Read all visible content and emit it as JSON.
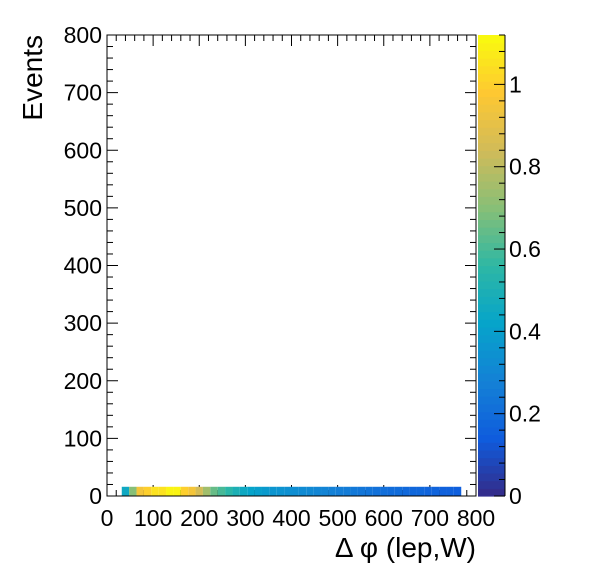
{
  "chart_data": {
    "type": "heatmap",
    "title": "",
    "xlabel": "Δ φ (lep,W)",
    "ylabel": "Events",
    "xlim": [
      0,
      800
    ],
    "ylim": [
      0,
      800
    ],
    "x_ticks": [
      "0",
      "100",
      "200",
      "300",
      "400",
      "500",
      "600",
      "700",
      "800"
    ],
    "y_ticks": [
      "0",
      "100",
      "200",
      "300",
      "400",
      "500",
      "600",
      "700",
      "800"
    ],
    "bin_width_x": 16,
    "bin_height_y": 16,
    "row_y_low": 0,
    "first_bin_x_low": 32,
    "values": [
      0.45,
      0.7,
      0.95,
      1.0,
      1.05,
      1.05,
      1.1,
      1.1,
      1.0,
      0.95,
      0.85,
      0.75,
      0.65,
      0.6,
      0.55,
      0.5,
      0.45,
      0.42,
      0.4,
      0.38,
      0.36,
      0.35,
      0.34,
      0.33,
      0.32,
      0.31,
      0.3,
      0.29,
      0.28,
      0.27,
      0.26,
      0.25,
      0.24,
      0.23,
      0.22,
      0.21,
      0.2,
      0.2,
      0.19,
      0.18,
      0.18,
      0.17,
      0.17,
      0.16,
      0.16,
      0.15
    ],
    "colorbar": {
      "zlim": [
        0,
        1.12
      ],
      "ticks": [
        "0",
        "0.2",
        "0.4",
        "0.6",
        "0.8",
        "1"
      ],
      "tick_values": [
        0,
        0.2,
        0.4,
        0.6,
        0.8,
        1.0
      ],
      "palette": [
        "#352a87",
        "#0f5cdd",
        "#1481d6",
        "#06a4ca",
        "#2eb7a4",
        "#87bf77",
        "#d1bb59",
        "#fec832",
        "#f9fb0e"
      ]
    },
    "grid": false,
    "legend": "none"
  }
}
